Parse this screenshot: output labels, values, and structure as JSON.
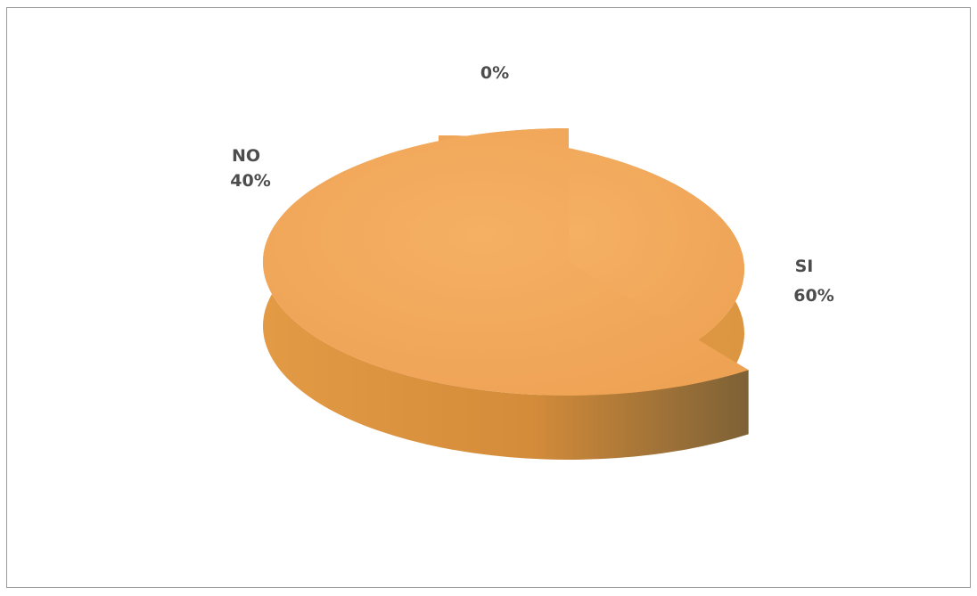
{
  "chart_data": {
    "type": "pie",
    "style": "3d-exploded",
    "categories": [
      "NO",
      "SI",
      ""
    ],
    "values": [
      40,
      60,
      0
    ],
    "data_labels": [
      {
        "category": "NO",
        "percent": "40%"
      },
      {
        "category": "SI",
        "percent": "60%"
      },
      {
        "category": "",
        "percent": "0%"
      }
    ],
    "colors": {
      "slice_top": "#f2a857",
      "slice_side": "#d88f3c",
      "slice_side_dark": "#8a6a3a",
      "label_text": "#4d4d4d",
      "border": "#9a9a9a"
    },
    "legend": "none",
    "title": ""
  }
}
